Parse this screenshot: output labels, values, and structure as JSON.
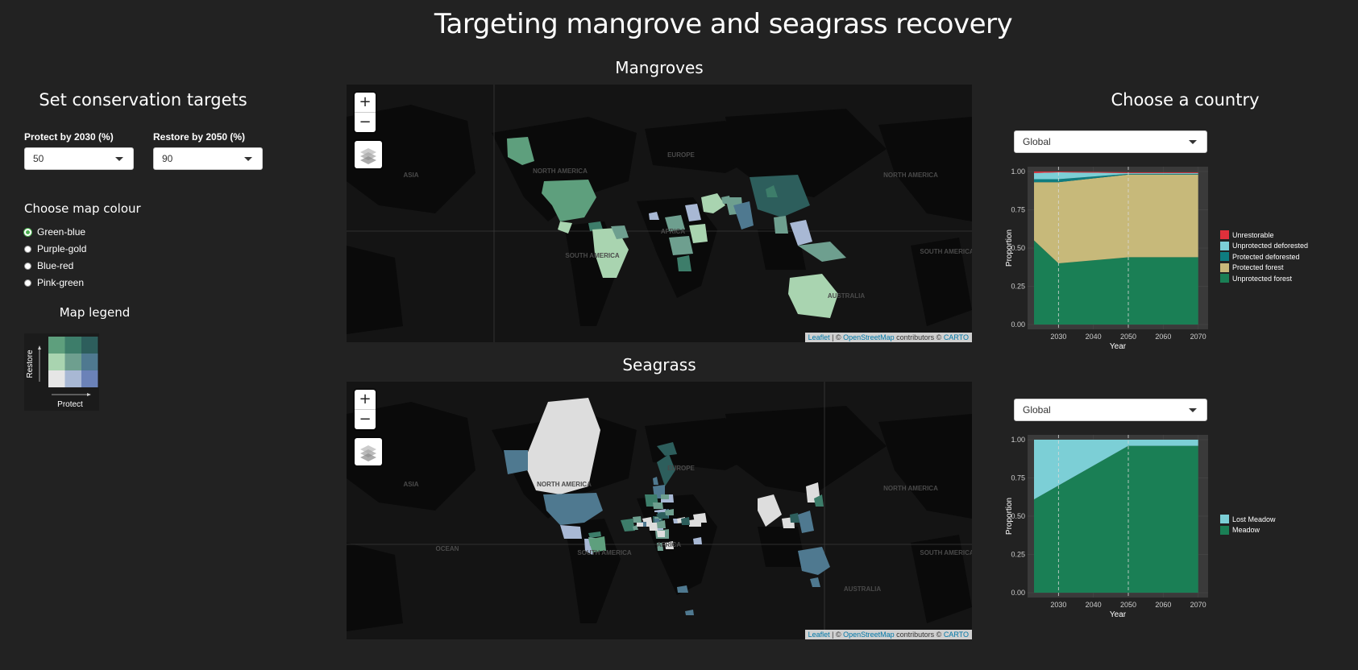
{
  "page": {
    "title": "Targeting mangrove and seagrass recovery"
  },
  "left": {
    "heading": "Set conservation targets",
    "protect": {
      "label": "Protect by 2030 (%)",
      "value": "50"
    },
    "restore": {
      "label": "Restore by 2050 (%)",
      "value": "90"
    },
    "colour_heading": "Choose map colour",
    "colour_options": [
      "Green-blue",
      "Purple-gold",
      "Blue-red",
      "Pink-green"
    ],
    "colour_selected": "Green-blue",
    "legend_heading": "Map legend",
    "legend_axis_y": "Restore",
    "legend_axis_x": "Protect",
    "legend_colors": [
      [
        "#5e9f7d",
        "#3d7d6a",
        "#2d5e5c"
      ],
      [
        "#a9d4b0",
        "#6e9f8f",
        "#4f7990"
      ],
      [
        "#e6e6e6",
        "#a8b8d4",
        "#6b82b8"
      ]
    ]
  },
  "mangroves_map": {
    "title": "Mangroves",
    "zoom_in": "+",
    "zoom_out": "−",
    "attribution": {
      "leaflet": "Leaflet",
      "sep": " | © ",
      "osm": "OpenStreetMap",
      "contrib": " contributors © ",
      "carto": "CARTO"
    },
    "place_labels": [
      "ASIA",
      "NORTH AMERICA",
      "EUROPE",
      "AFRICA",
      "AUSTRALIA",
      "SOUTH AMERICA",
      "NORTH AMERICA",
      "SOUTH AMERICA"
    ]
  },
  "seagrass_map": {
    "title": "Seagrass",
    "zoom_in": "+",
    "zoom_out": "−",
    "attribution": {
      "leaflet": "Leaflet",
      "sep": " | © ",
      "osm": "OpenStreetMap",
      "contrib": " contributors © ",
      "carto": "CARTO"
    },
    "place_labels": [
      "ASIA",
      "NORTH AMERICA",
      "EUROPE",
      "AFRICA",
      "SOUTH AMERICA",
      "OCEAN",
      "AUSTRALIA",
      "NORTH AMERICA",
      "SOUTH AMERICA"
    ]
  },
  "right": {
    "heading": "Choose a country",
    "country_top": "Global",
    "country_bottom": "Global"
  },
  "chart_data": [
    {
      "type": "area",
      "xlabel": "Year",
      "ylabel": "Proportion",
      "x": [
        2023,
        2030,
        2050,
        2070
      ],
      "xticks": [
        2030,
        2040,
        2050,
        2060,
        2070
      ],
      "yticks": [
        0.0,
        0.25,
        0.5,
        0.75,
        1.0
      ],
      "ytick_labels": [
        "0.00",
        "0.25",
        "0.50",
        "0.75",
        "1.00"
      ],
      "ylim": [
        0,
        1
      ],
      "vlines": [
        2030,
        2050
      ],
      "series": [
        {
          "name": "Unprotected forest",
          "color": "#1a7f55",
          "values": [
            0.55,
            0.4,
            0.44,
            0.44
          ]
        },
        {
          "name": "Protected forest",
          "color": "#c7b97a",
          "values": [
            0.38,
            0.53,
            0.54,
            0.54
          ]
        },
        {
          "name": "Protected deforested",
          "color": "#0e7d80",
          "values": [
            0.02,
            0.02,
            0.005,
            0.005
          ]
        },
        {
          "name": "Unprotected deforested",
          "color": "#7ccfd6",
          "values": [
            0.04,
            0.045,
            0.005,
            0.005
          ]
        },
        {
          "name": "Unrestorable",
          "color": "#e0303b",
          "values": [
            0.01,
            0.005,
            0.005,
            0.005
          ]
        }
      ],
      "legend_order": [
        "Unrestorable",
        "Unprotected deforested",
        "Protected deforested",
        "Protected forest",
        "Unprotected forest"
      ]
    },
    {
      "type": "area",
      "xlabel": "Year",
      "ylabel": "Proportion",
      "x": [
        2023,
        2050,
        2070
      ],
      "xticks": [
        2030,
        2040,
        2050,
        2060,
        2070
      ],
      "yticks": [
        0.0,
        0.25,
        0.5,
        0.75,
        1.0
      ],
      "ytick_labels": [
        "0.00",
        "0.25",
        "0.50",
        "0.75",
        "1.00"
      ],
      "ylim": [
        0,
        1
      ],
      "vlines": [
        2030,
        2050
      ],
      "series": [
        {
          "name": "Meadow",
          "color": "#1a7f55",
          "values": [
            0.61,
            0.96,
            0.96
          ]
        },
        {
          "name": "Lost Meadow",
          "color": "#7ccfd6",
          "values": [
            0.39,
            0.04,
            0.04
          ]
        }
      ],
      "legend_order": [
        "Lost Meadow",
        "Meadow"
      ]
    }
  ]
}
